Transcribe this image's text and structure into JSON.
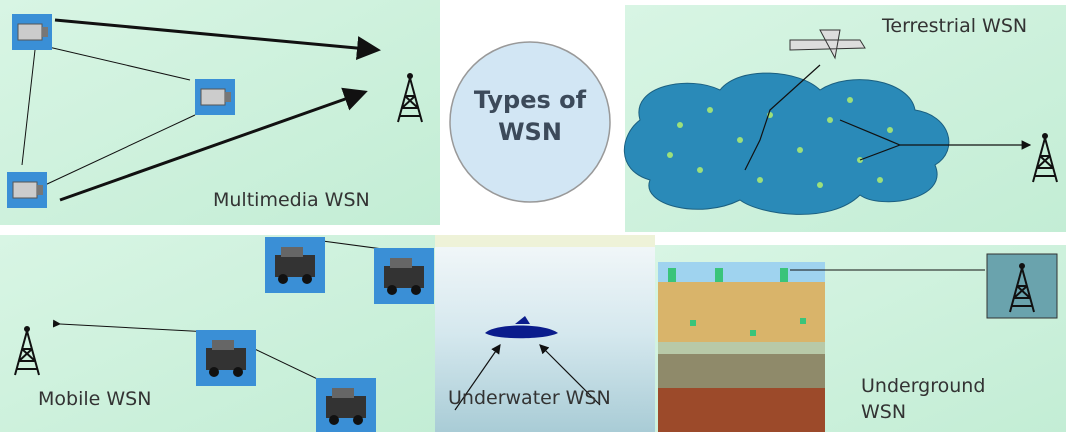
{
  "center": {
    "lines": [
      "Types of",
      "WSN"
    ]
  },
  "panels": [
    {
      "lines": [
        "Multimedia WSN"
      ]
    },
    {
      "lines": [
        "Terrestrial WSN"
      ]
    },
    {
      "lines": [
        "Mobile WSN"
      ]
    },
    {
      "lines": [
        "Underwater WSN"
      ]
    },
    {
      "lines": [
        "Underground",
        "WSN"
      ]
    }
  ]
}
